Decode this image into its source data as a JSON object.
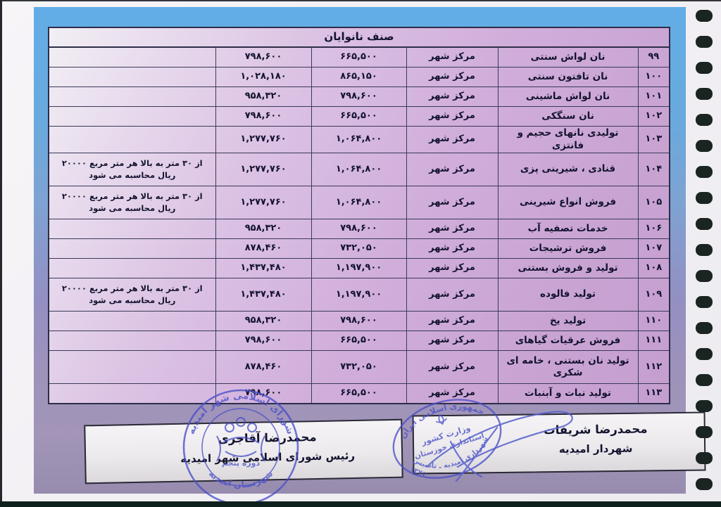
{
  "title": "صنف نانوایان",
  "table": {
    "zone_label": "مرکز شهر",
    "note_text": "از ۳۰ متر به بالا هر متر مربع ۲۰۰۰۰ ریال محاسبه می شود",
    "rows": [
      {
        "no": "۹۹",
        "desc": "نان لواش سنتی",
        "zone": "مرکز شهر",
        "price_a": "۶۶۵,۵۰۰",
        "price_b": "۷۹۸,۶۰۰",
        "note": ""
      },
      {
        "no": "۱۰۰",
        "desc": "نان تافتون سنتی",
        "zone": "مرکز شهر",
        "price_a": "۸۶۵,۱۵۰",
        "price_b": "۱,۰۲۸,۱۸۰",
        "note": ""
      },
      {
        "no": "۱۰۱",
        "desc": "نان لواش ماشینی",
        "zone": "مرکز شهر",
        "price_a": "۷۹۸,۶۰۰",
        "price_b": "۹۵۸,۳۲۰",
        "note": ""
      },
      {
        "no": "۱۰۲",
        "desc": "نان سنگکی",
        "zone": "مرکز شهر",
        "price_a": "۶۶۵,۵۰۰",
        "price_b": "۷۹۸,۶۰۰",
        "note": ""
      },
      {
        "no": "۱۰۳",
        "desc": "تولیدی نانهای حجیم و فانتزی",
        "zone": "مرکز شهر",
        "price_a": "۱,۰۶۴,۸۰۰",
        "price_b": "۱,۲۷۷,۷۶۰",
        "note": ""
      },
      {
        "no": "۱۰۴",
        "desc": "قنادی ، شیرینی پزی",
        "zone": "مرکز شهر",
        "price_a": "۱,۰۶۴,۸۰۰",
        "price_b": "۱,۲۷۷,۷۶۰",
        "note": "از ۳۰ متر به بالا هر متر مربع ۲۰۰۰۰ ریال محاسبه می شود"
      },
      {
        "no": "۱۰۵",
        "desc": "فروش انواع شیرینی",
        "zone": "مرکز شهر",
        "price_a": "۱,۰۶۴,۸۰۰",
        "price_b": "۱,۲۷۷,۷۶۰",
        "note": "از ۳۰ متر به بالا هر متر مربع ۲۰۰۰۰ ریال محاسبه می شود"
      },
      {
        "no": "۱۰۶",
        "desc": "خدمات تصفیه آب",
        "zone": "مرکز شهر",
        "price_a": "۷۹۸,۶۰۰",
        "price_b": "۹۵۸,۳۲۰",
        "note": ""
      },
      {
        "no": "۱۰۷",
        "desc": "فروش ترشیجات",
        "zone": "مرکز شهر",
        "price_a": "۷۳۲,۰۵۰",
        "price_b": "۸۷۸,۴۶۰",
        "note": ""
      },
      {
        "no": "۱۰۸",
        "desc": "تولید و فروش بستنی",
        "zone": "مرکز شهر",
        "price_a": "۱,۱۹۷,۹۰۰",
        "price_b": "۱,۴۳۷,۴۸۰",
        "note": ""
      },
      {
        "no": "۱۰۹",
        "desc": "تولید فالوده",
        "zone": "مرکز شهر",
        "price_a": "۱,۱۹۷,۹۰۰",
        "price_b": "۱,۴۳۷,۴۸۰",
        "note": "از ۳۰ متر به بالا هر متر مربع ۲۰۰۰۰ ریال محاسبه می شود"
      },
      {
        "no": "۱۱۰",
        "desc": "تولید یخ",
        "zone": "مرکز شهر",
        "price_a": "۷۹۸,۶۰۰",
        "price_b": "۹۵۸,۳۲۰",
        "note": ""
      },
      {
        "no": "۱۱۱",
        "desc": "فروش عرقیات گیاهای",
        "zone": "مرکز شهر",
        "price_a": "۶۶۵,۵۰۰",
        "price_b": "۷۹۸,۶۰۰",
        "note": ""
      },
      {
        "no": "۱۱۲",
        "desc": "تولید نان بستنی ، خامه ای شکری",
        "zone": "مرکز شهر",
        "price_a": "۷۳۲,۰۵۰",
        "price_b": "۸۷۸,۴۶۰",
        "note": ""
      },
      {
        "no": "۱۱۳",
        "desc": "تولید نبات و آبنبات",
        "zone": "مرکز شهر",
        "price_a": "۶۶۵,۵۰۰",
        "price_b": "۷۹۸,۶۰۰",
        "note": ""
      }
    ]
  },
  "signature_left": {
    "name": "محمدرضا آقاجری",
    "role": "رئیس شورای اسلامی شهر امیدیه"
  },
  "signature_right": {
    "name": "محمدرضا شریفات",
    "role": "شهردار امیدیه"
  },
  "stamp_round": {
    "arc_top": "شورای اسلامی شهر امیدیه",
    "arc_bottom": "شهرستان امیدیه",
    "band": "دوره پنجم"
  },
  "stamp_oval": {
    "arc_top": "جمهوری اسلامی ایران",
    "line1": "وزارت کشور",
    "line2": "استانداری خوزستان",
    "arc_bottom": "شهرداری امیدیه ـ تأسیس",
    "year": "۱۳۷۱"
  },
  "colors": {
    "accent_blue": "#62ade6",
    "page_purple": "#9e92bb",
    "table_pink": "#cba6d6",
    "stamp_blue": "#4a50c8",
    "ink": "#13132f",
    "hole": "#1a2421"
  }
}
